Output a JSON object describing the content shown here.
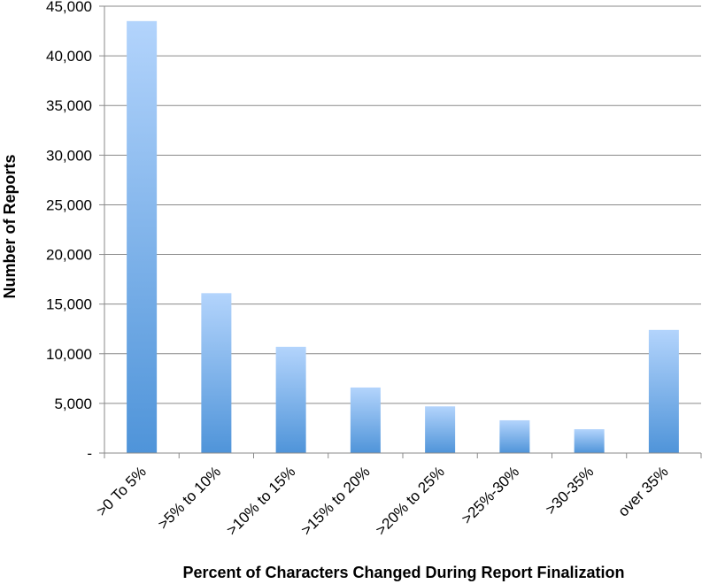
{
  "chart_data": {
    "type": "bar",
    "title": "",
    "xlabel": "Percent of Characters Changed During Report Finalization",
    "ylabel": "Number of Reports",
    "categories": [
      ">0 To 5%",
      ">5% to 10%",
      ">10% to 15%",
      ">15% to 20%",
      ">20% to 25%",
      ">25%-30%",
      ">30-35%",
      "over 35%"
    ],
    "values": [
      43500,
      16100,
      10700,
      6600,
      4700,
      3300,
      2400,
      12400
    ],
    "ylim": [
      0,
      45000
    ],
    "yticks": [
      0,
      5000,
      10000,
      15000,
      20000,
      25000,
      30000,
      35000,
      40000,
      45000
    ],
    "ytick_labels": [
      "-",
      "5,000",
      "10,000",
      "15,000",
      "20,000",
      "25,000",
      "30,000",
      "35,000",
      "40,000",
      "45,000"
    ],
    "grid": true,
    "legend": "none",
    "colors": {
      "bar_top": "#b3d4fc",
      "bar_bottom": "#4f94d9",
      "grid": "#8a8a8a",
      "axis": "#8a8a8a"
    }
  }
}
